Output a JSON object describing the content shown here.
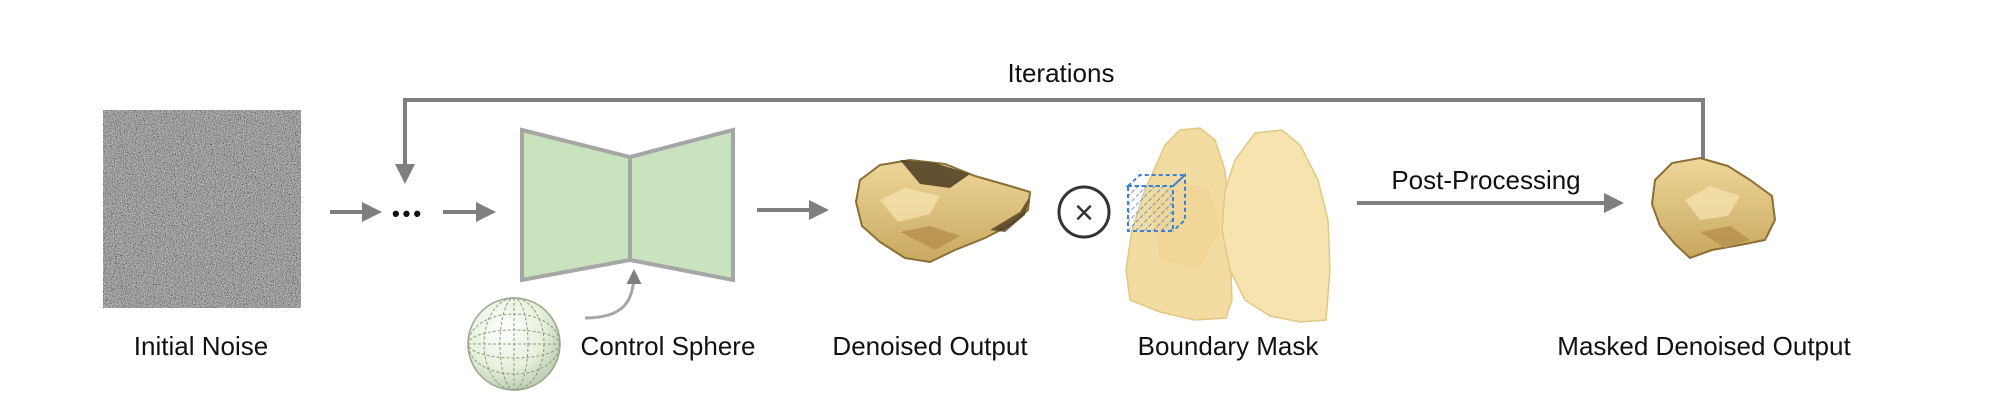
{
  "labels": {
    "iterations": "Iterations",
    "post_processing": "Post-Processing",
    "initial_noise": "Initial Noise",
    "control_sphere": "Control Sphere",
    "denoised_output": "Denoised Output",
    "boundary_mask": "Boundary Mask",
    "masked_denoised_output": "Masked Denoised Output"
  },
  "ellipsis": "•••",
  "operator": "×",
  "colors": {
    "arrow": "#7f7f7f",
    "unet_fill": "#c8e3be",
    "unet_stroke": "#a6a6a6",
    "tumor": "#dcc27e",
    "lung": "#f3dca2",
    "mask_box": "#3b82d6"
  }
}
